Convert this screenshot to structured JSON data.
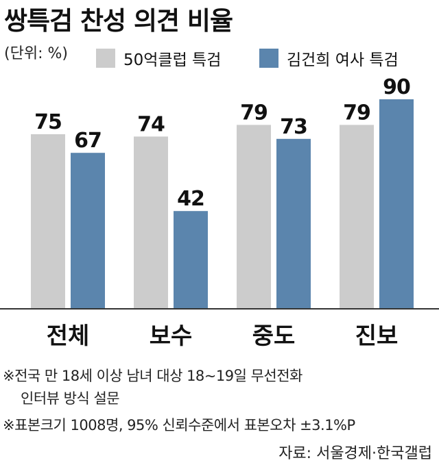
{
  "title": "쌍특검 찬성 의견 비율",
  "unit": "(단위: %)",
  "colors": {
    "series1": "#cccccc",
    "series2": "#5b85ad",
    "baseline": "#333333"
  },
  "chart_data": {
    "type": "bar",
    "categories": [
      "전체",
      "보수",
      "중도",
      "진보"
    ],
    "series": [
      {
        "name": "50억클럽 특검",
        "values": [
          75,
          74,
          79,
          79
        ]
      },
      {
        "name": "김건희 여사 특검",
        "values": [
          67,
          42,
          73,
          90
        ]
      }
    ],
    "ylim": [
      0,
      100
    ],
    "grid": false,
    "legend": "top-right",
    "data_labels": true
  },
  "notes": [
    "※전국 만 18세 이상 남녀 대상 18~19일 무선전화",
    "인터뷰 방식 설문",
    "※표본크기 1008명, 95% 신뢰수준에서 표본오차 ±3.1%P"
  ],
  "source": "자료: 서울경제·한국갤럽"
}
